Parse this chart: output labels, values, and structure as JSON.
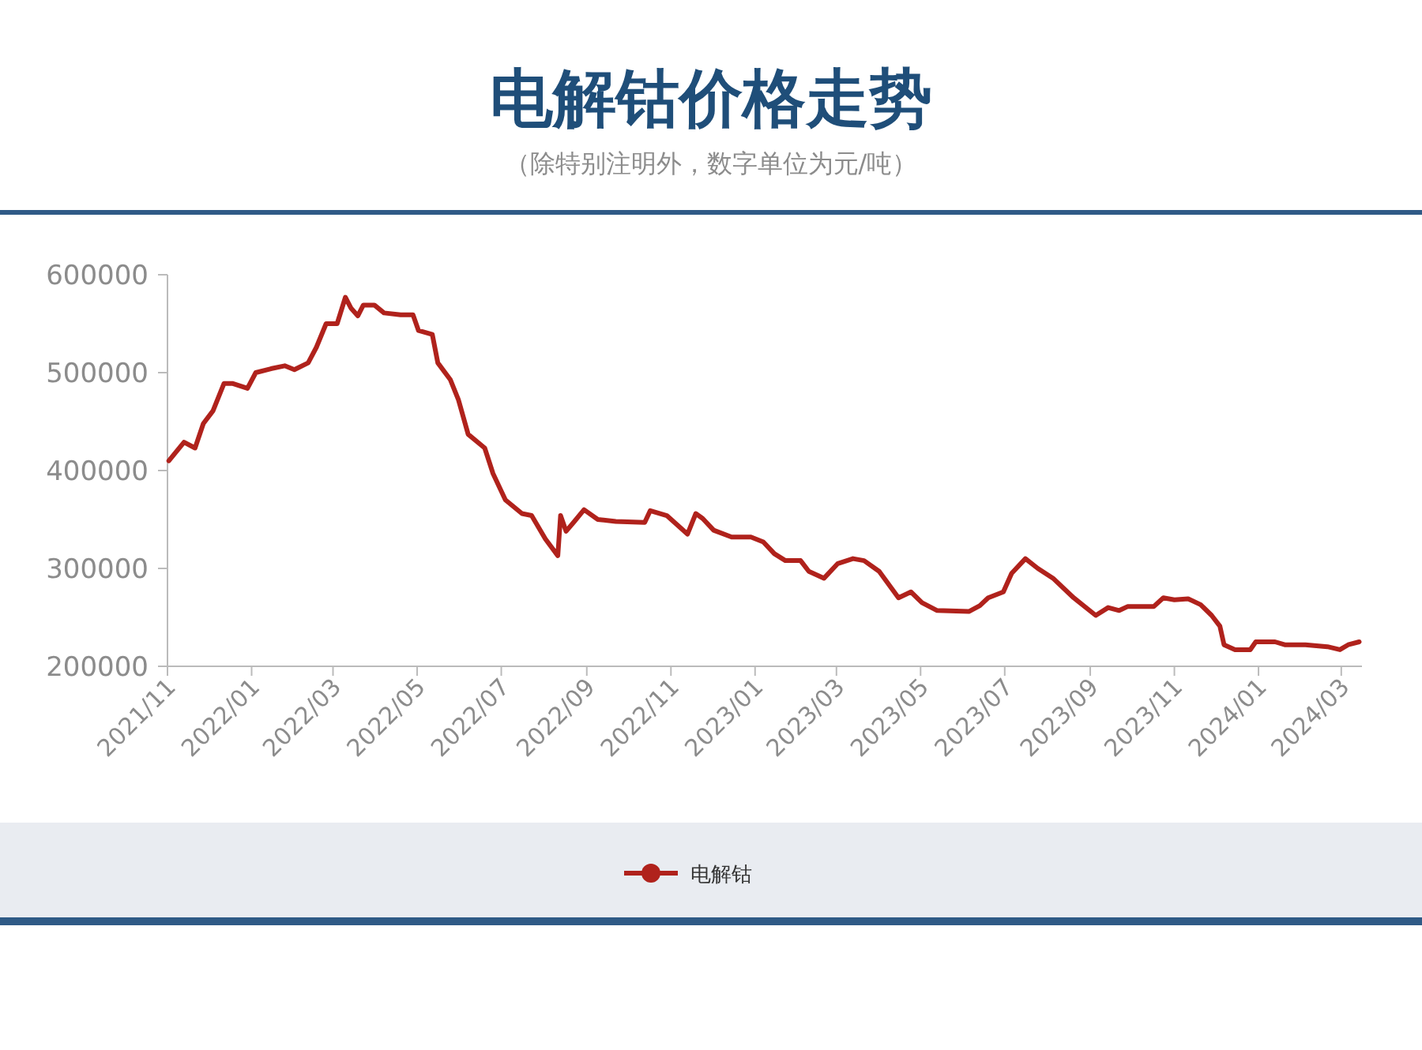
{
  "chart_data": {
    "type": "line",
    "title": "电解钴价格走势",
    "subtitle": "（除特别注明外，数字单位为元/吨）",
    "xlim": [
      "2021-11-01",
      "2024-03-16"
    ],
    "ylim": [
      200000,
      600000
    ],
    "yticks": [
      200000,
      300000,
      400000,
      500000,
      600000
    ],
    "xticks": [
      {
        "value": "2021-11-01",
        "label": "2021/11"
      },
      {
        "value": "2022-01-01",
        "label": "2022/01"
      },
      {
        "value": "2022-03-01",
        "label": "2022/03"
      },
      {
        "value": "2022-05-01",
        "label": "2022/05"
      },
      {
        "value": "2022-07-01",
        "label": "2022/07"
      },
      {
        "value": "2022-09-01",
        "label": "2022/09"
      },
      {
        "value": "2022-11-01",
        "label": "2022/11"
      },
      {
        "value": "2023-01-01",
        "label": "2023/01"
      },
      {
        "value": "2023-03-01",
        "label": "2023/03"
      },
      {
        "value": "2023-05-01",
        "label": "2023/05"
      },
      {
        "value": "2023-07-01",
        "label": "2023/07"
      },
      {
        "value": "2023-09-01",
        "label": "2023/09"
      },
      {
        "value": "2023-11-01",
        "label": "2023/11"
      },
      {
        "value": "2024-01-01",
        "label": "2024/01"
      },
      {
        "value": "2024-03-01",
        "label": "2024/03"
      }
    ],
    "legend": "bottom",
    "grid": false,
    "line_style": "solid",
    "x": [
      "2021-11-02",
      "2021-11-13",
      "2021-11-21",
      "2021-11-27",
      "2021-12-04",
      "2021-12-12",
      "2021-12-18",
      "2021-12-29",
      "2022-01-04",
      "2022-01-15",
      "2022-01-25",
      "2022-02-01",
      "2022-02-11",
      "2022-02-17",
      "2022-02-24",
      "2022-03-04",
      "2022-03-10",
      "2022-03-14",
      "2022-03-19",
      "2022-03-23",
      "2022-03-31",
      "2022-04-07",
      "2022-04-19",
      "2022-04-28",
      "2022-05-02",
      "2022-05-12",
      "2022-05-16",
      "2022-05-25",
      "2022-05-31",
      "2022-06-07",
      "2022-06-19",
      "2022-06-25",
      "2022-07-04",
      "2022-07-16",
      "2022-07-23",
      "2022-08-02",
      "2022-08-11",
      "2022-08-13",
      "2022-08-17",
      "2022-08-23",
      "2022-08-30",
      "2022-09-09",
      "2022-09-22",
      "2022-10-13",
      "2022-10-17",
      "2022-10-29",
      "2022-11-13",
      "2022-11-19",
      "2022-11-24",
      "2022-12-02",
      "2022-12-15",
      "2022-12-29",
      "2023-01-07",
      "2023-01-15",
      "2023-01-23",
      "2023-02-03",
      "2023-02-09",
      "2023-02-20",
      "2023-03-02",
      "2023-03-13",
      "2023-03-21",
      "2023-04-01",
      "2023-04-15",
      "2023-04-24",
      "2023-05-02",
      "2023-05-13",
      "2023-06-05",
      "2023-06-13",
      "2023-06-19",
      "2023-06-30",
      "2023-07-06",
      "2023-07-16",
      "2023-07-25",
      "2023-08-05",
      "2023-08-20",
      "2023-09-05",
      "2023-09-14",
      "2023-09-22",
      "2023-09-28",
      "2023-10-17",
      "2023-10-24",
      "2023-11-01",
      "2023-11-11",
      "2023-11-20",
      "2023-11-28",
      "2023-12-04",
      "2023-12-07",
      "2023-12-15",
      "2023-12-26",
      "2023-12-30",
      "2024-01-13",
      "2024-01-20",
      "2024-02-04",
      "2024-02-20",
      "2024-02-29",
      "2024-03-06",
      "2024-03-14"
    ],
    "series": [
      {
        "name": "电解钴",
        "color": "#b0221c",
        "values": [
          410000,
          429000,
          423000,
          448000,
          461000,
          489000,
          489000,
          484000,
          500000,
          504000,
          507000,
          503000,
          510000,
          526000,
          550000,
          550000,
          577000,
          566000,
          558000,
          569000,
          569000,
          561000,
          559000,
          559000,
          543000,
          539000,
          510000,
          493000,
          472000,
          437000,
          423000,
          397000,
          370000,
          356000,
          354000,
          330000,
          313000,
          354000,
          338000,
          348000,
          360000,
          350000,
          348000,
          347000,
          359000,
          354000,
          335000,
          356000,
          351000,
          339000,
          332000,
          332000,
          327000,
          315000,
          308000,
          308000,
          297000,
          290000,
          305000,
          310000,
          308000,
          297000,
          270000,
          276000,
          265000,
          257000,
          256000,
          262000,
          270000,
          276000,
          295000,
          310000,
          300000,
          290000,
          270000,
          252000,
          260000,
          257000,
          261000,
          261000,
          270000,
          268000,
          269000,
          263000,
          252000,
          241000,
          222000,
          217000,
          217000,
          225000,
          225000,
          222000,
          222000,
          220000,
          217000,
          222000,
          225000
        ]
      }
    ]
  }
}
